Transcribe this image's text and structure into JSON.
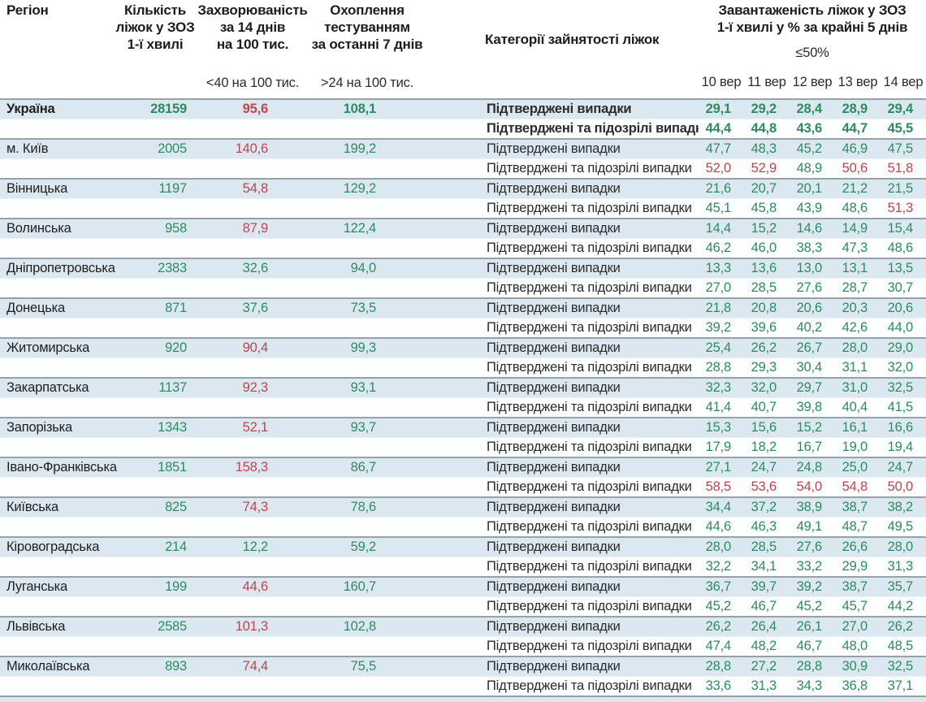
{
  "colors": {
    "green": "#2e8b60",
    "red": "#bf444d",
    "row_blue": "#dce8f1",
    "row_white": "#fdfefe"
  },
  "thresholds": {
    "incidence_red_above": 40,
    "occupancy_red_at_or_above": 50
  },
  "header": {
    "region": "Регіон",
    "beds": "Кількість\nліжок у ЗОЗ\n1-ї хвилі",
    "incidence": "Захворюваність\nза 14 днів\nна 100 тис.",
    "testing": "Охоплення\nтестуванням\nза останні 7 днів",
    "category": "Категорії зайнятості ліжок",
    "occupancy": "Завантаженість ліжок у ЗОЗ\n1-ї хвилі у % за крайні 5 днів",
    "occupancy_threshold": "≤50%",
    "incidence_threshold": "<40 на 100 тис.",
    "testing_threshold": ">24 на 100 тис.",
    "dates": [
      "10 вер",
      "11 вер",
      "12 вер",
      "13 вер",
      "14 вер"
    ]
  },
  "row_labels": {
    "confirmed": "Підтверджені випадки",
    "confirmed_suspected": "Підтверджені та підозрілі випадки"
  },
  "regions": [
    {
      "name": "Україна",
      "bold": true,
      "beds": "28159",
      "incidence": "95,6",
      "testing": "108,1",
      "confirmed": [
        "29,1",
        "29,2",
        "28,4",
        "28,9",
        "29,4"
      ],
      "confirmed_suspected": [
        "44,4",
        "44,8",
        "43,6",
        "44,7",
        "45,5"
      ]
    },
    {
      "name": "м. Київ",
      "bold": false,
      "beds": "2005",
      "incidence": "140,6",
      "testing": "199,2",
      "confirmed": [
        "47,7",
        "48,3",
        "45,2",
        "46,9",
        "47,5"
      ],
      "confirmed_suspected": [
        "52,0",
        "52,9",
        "48,9",
        "50,6",
        "51,8"
      ]
    },
    {
      "name": "Вінницька",
      "bold": false,
      "beds": "1197",
      "incidence": "54,8",
      "testing": "129,2",
      "confirmed": [
        "21,6",
        "20,7",
        "20,1",
        "21,2",
        "21,5"
      ],
      "confirmed_suspected": [
        "45,1",
        "45,8",
        "43,9",
        "48,6",
        "51,3"
      ]
    },
    {
      "name": "Волинська",
      "bold": false,
      "beds": "958",
      "incidence": "87,9",
      "testing": "122,4",
      "confirmed": [
        "14,4",
        "15,2",
        "14,6",
        "14,9",
        "15,4"
      ],
      "confirmed_suspected": [
        "46,2",
        "46,0",
        "38,3",
        "47,3",
        "48,6"
      ]
    },
    {
      "name": "Дніпропетровська",
      "bold": false,
      "beds": "2383",
      "incidence": "32,6",
      "testing": "94,0",
      "confirmed": [
        "13,3",
        "13,6",
        "13,0",
        "13,1",
        "13,5"
      ],
      "confirmed_suspected": [
        "27,0",
        "28,5",
        "27,6",
        "28,7",
        "30,7"
      ]
    },
    {
      "name": "Донецька",
      "bold": false,
      "beds": "871",
      "incidence": "37,6",
      "testing": "73,5",
      "confirmed": [
        "21,8",
        "20,8",
        "20,6",
        "20,3",
        "20,6"
      ],
      "confirmed_suspected": [
        "39,2",
        "39,6",
        "40,2",
        "42,6",
        "44,0"
      ]
    },
    {
      "name": "Житомирська",
      "bold": false,
      "beds": "920",
      "incidence": "90,4",
      "testing": "99,3",
      "confirmed": [
        "25,4",
        "26,2",
        "26,7",
        "28,0",
        "29,0"
      ],
      "confirmed_suspected": [
        "28,8",
        "29,3",
        "30,4",
        "31,1",
        "32,0"
      ]
    },
    {
      "name": "Закарпатська",
      "bold": false,
      "beds": "1137",
      "incidence": "92,3",
      "testing": "93,1",
      "confirmed": [
        "32,3",
        "32,0",
        "29,7",
        "31,0",
        "32,5"
      ],
      "confirmed_suspected": [
        "41,4",
        "40,7",
        "39,8",
        "40,4",
        "41,5"
      ]
    },
    {
      "name": "Запорізька",
      "bold": false,
      "beds": "1343",
      "incidence": "52,1",
      "testing": "93,7",
      "confirmed": [
        "15,3",
        "15,6",
        "15,2",
        "16,1",
        "16,6"
      ],
      "confirmed_suspected": [
        "17,9",
        "18,2",
        "16,7",
        "19,0",
        "19,4"
      ]
    },
    {
      "name": "Івано-Франківська",
      "bold": false,
      "beds": "1851",
      "incidence": "158,3",
      "testing": "86,7",
      "confirmed": [
        "27,1",
        "24,7",
        "24,8",
        "25,0",
        "24,7"
      ],
      "confirmed_suspected": [
        "58,5",
        "53,6",
        "54,0",
        "54,8",
        "50,0"
      ]
    },
    {
      "name": "Київська",
      "bold": false,
      "beds": "825",
      "incidence": "74,3",
      "testing": "78,6",
      "confirmed": [
        "34,4",
        "37,2",
        "38,9",
        "38,7",
        "38,2"
      ],
      "confirmed_suspected": [
        "44,6",
        "46,3",
        "49,1",
        "48,7",
        "49,5"
      ]
    },
    {
      "name": "Кіровоградська",
      "bold": false,
      "beds": "214",
      "incidence": "12,2",
      "testing": "59,2",
      "confirmed": [
        "28,0",
        "28,5",
        "27,6",
        "26,6",
        "28,0"
      ],
      "confirmed_suspected": [
        "32,2",
        "34,1",
        "33,2",
        "29,9",
        "31,3"
      ]
    },
    {
      "name": "Луганська",
      "bold": false,
      "beds": "199",
      "incidence": "44,6",
      "testing": "160,7",
      "confirmed": [
        "36,7",
        "39,7",
        "39,2",
        "38,7",
        "35,7"
      ],
      "confirmed_suspected": [
        "45,2",
        "46,7",
        "45,2",
        "45,7",
        "44,2"
      ]
    },
    {
      "name": "Львівська",
      "bold": false,
      "beds": "2585",
      "incidence": "101,3",
      "testing": "102,8",
      "confirmed": [
        "26,2",
        "26,4",
        "26,1",
        "27,0",
        "26,2"
      ],
      "confirmed_suspected": [
        "47,4",
        "48,2",
        "46,7",
        "48,0",
        "48,5"
      ]
    },
    {
      "name": "Миколаївська",
      "bold": false,
      "beds": "893",
      "incidence": "74,4",
      "testing": "75,5",
      "confirmed": [
        "28,8",
        "27,2",
        "28,8",
        "30,9",
        "32,5"
      ],
      "confirmed_suspected": [
        "33,6",
        "31,3",
        "34,3",
        "36,8",
        "37,1"
      ]
    }
  ]
}
